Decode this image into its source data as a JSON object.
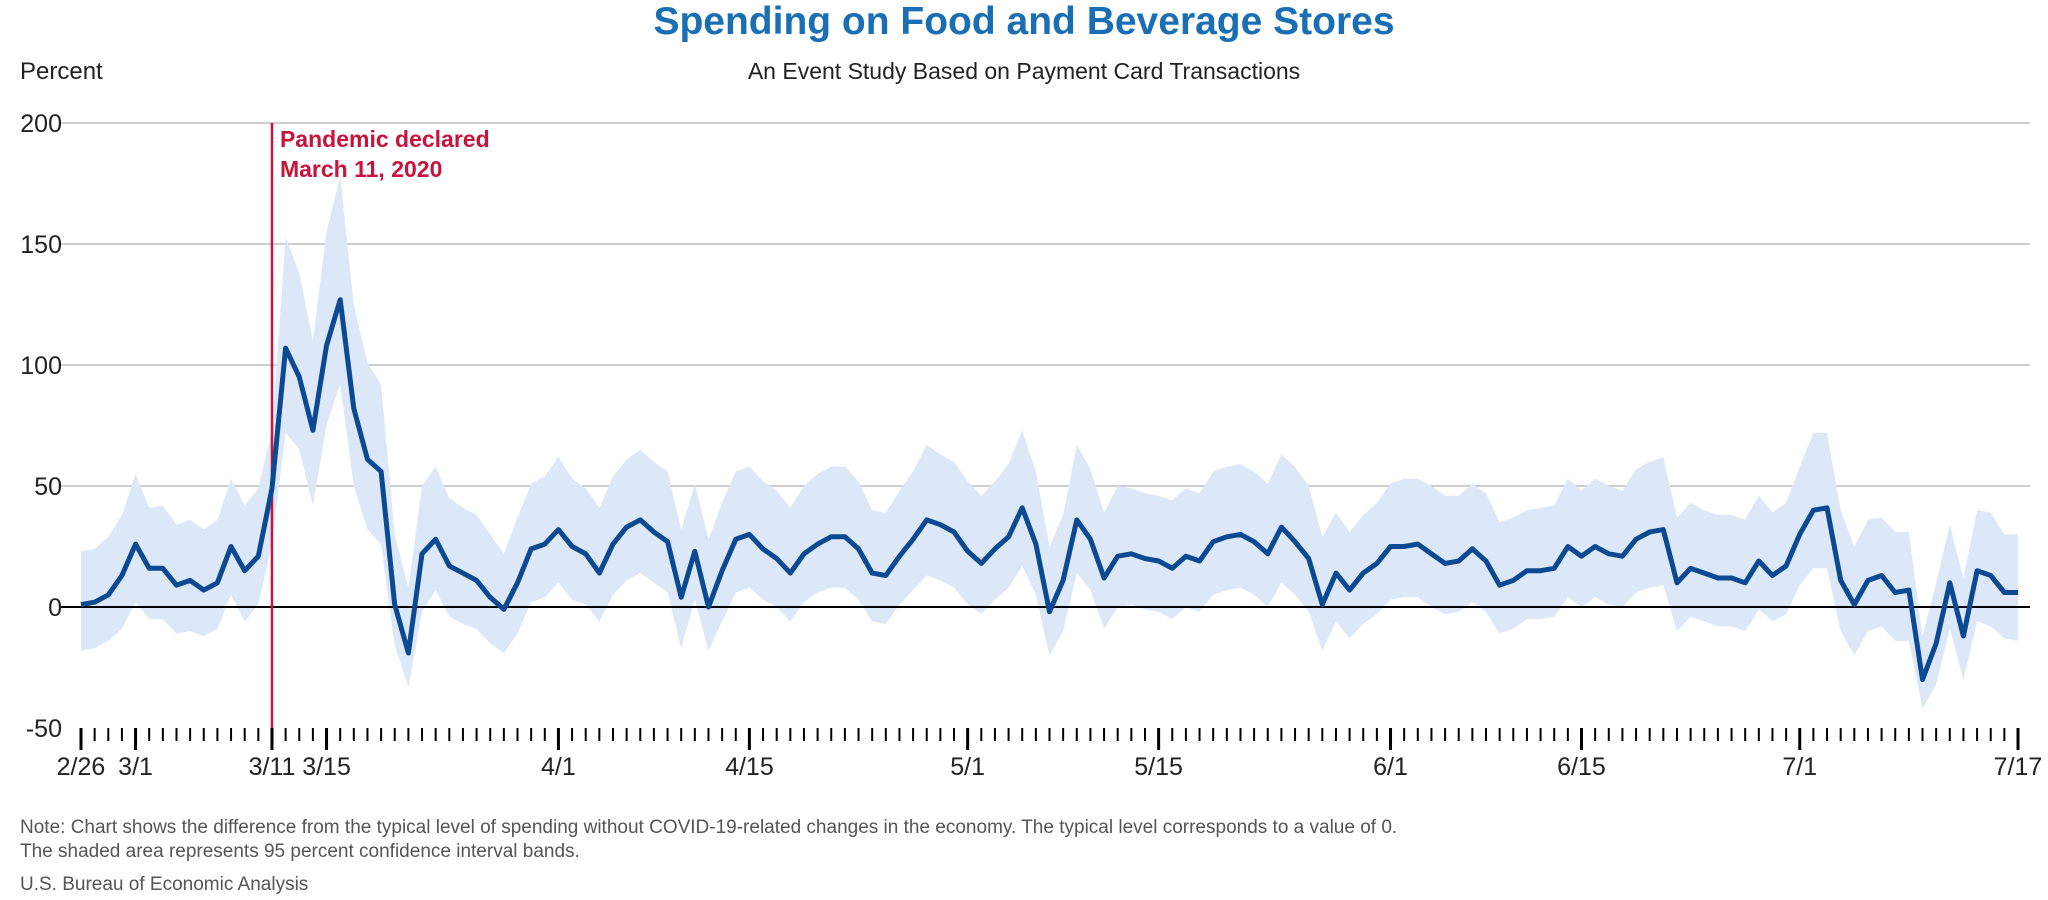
{
  "chart_data": {
    "type": "line",
    "title": "Spending on Food and Beverage Stores",
    "subtitle": "An Event Study Based on Payment Card Transactions",
    "ylabel": "Percent",
    "xlabel": "",
    "ylim": [
      -50,
      200
    ],
    "yticks": [
      -50,
      0,
      50,
      100,
      150,
      200
    ],
    "grid": true,
    "x_tick_labels": [
      {
        "day": 0,
        "label": "2/26"
      },
      {
        "day": 4,
        "label": "3/1"
      },
      {
        "day": 14,
        "label": "3/11"
      },
      {
        "day": 18,
        "label": "3/15"
      },
      {
        "day": 35,
        "label": "4/1"
      },
      {
        "day": 49,
        "label": "4/15"
      },
      {
        "day": 65,
        "label": "5/1"
      },
      {
        "day": 79,
        "label": "5/15"
      },
      {
        "day": 96,
        "label": "6/1"
      },
      {
        "day": 110,
        "label": "6/15"
      },
      {
        "day": 126,
        "label": "7/1"
      },
      {
        "day": 142,
        "label": "7/17"
      }
    ],
    "annotation": {
      "day": 14,
      "line1": "Pandemic declared",
      "line2": "March 11, 2020",
      "color": "#c8143c"
    },
    "series_color": "#0b4a92",
    "band_color": "#dce8f7",
    "values": [
      1,
      2,
      5,
      13,
      26,
      16,
      16,
      9,
      11,
      7,
      10,
      25,
      15,
      21,
      49,
      107,
      95,
      73,
      108,
      127,
      82,
      61,
      56,
      1,
      -19,
      22,
      28,
      17,
      14,
      11,
      4,
      -1,
      10,
      24,
      26,
      32,
      25,
      22,
      14,
      26,
      33,
      36,
      31,
      27,
      4,
      23,
      0,
      15,
      28,
      30,
      24,
      20,
      14,
      22,
      26,
      29,
      29,
      24,
      14,
      13,
      21,
      28,
      36,
      34,
      31,
      23,
      18,
      24,
      29,
      41,
      26,
      -2,
      11,
      36,
      28,
      12,
      21,
      22,
      20,
      19,
      16,
      21,
      19,
      27,
      29,
      30,
      27,
      22,
      33,
      27,
      20,
      1,
      14,
      7,
      14,
      18,
      25,
      25,
      26,
      22,
      18,
      19,
      24,
      19,
      9,
      11,
      15,
      15,
      16,
      25,
      21,
      25,
      22,
      21,
      28,
      31,
      32,
      10,
      16,
      14,
      12,
      12,
      10,
      19,
      13,
      17,
      30,
      40,
      41,
      11,
      1,
      11,
      13,
      6,
      7,
      -30,
      -15,
      10,
      -12,
      15,
      13,
      6,
      6
    ],
    "upper": [
      23,
      24,
      29,
      38,
      55,
      41,
      42,
      34,
      36,
      32,
      36,
      53,
      42,
      49,
      73,
      153,
      138,
      110,
      155,
      178,
      125,
      101,
      92,
      30,
      8,
      50,
      58,
      45,
      41,
      38,
      30,
      22,
      37,
      51,
      54,
      62,
      53,
      49,
      41,
      54,
      61,
      65,
      60,
      56,
      32,
      51,
      28,
      43,
      56,
      58,
      52,
      48,
      41,
      50,
      55,
      58,
      58,
      52,
      40,
      39,
      48,
      56,
      67,
      63,
      60,
      52,
      46,
      52,
      59,
      73,
      56,
      25,
      38,
      67,
      57,
      39,
      50,
      49,
      47,
      46,
      44,
      49,
      47,
      56,
      58,
      59,
      56,
      51,
      63,
      58,
      50,
      29,
      39,
      31,
      38,
      43,
      51,
      53,
      53,
      50,
      46,
      46,
      51,
      47,
      35,
      37,
      40,
      41,
      42,
      53,
      48,
      53,
      50,
      48,
      57,
      60,
      62,
      37,
      43,
      40,
      38,
      38,
      36,
      46,
      39,
      43,
      58,
      72,
      72,
      40,
      25,
      36,
      37,
      31,
      31,
      -12,
      10,
      34,
      12,
      40,
      39,
      30,
      30
    ],
    "lower": [
      -18,
      -17,
      -14,
      -9,
      2,
      -5,
      -5,
      -11,
      -10,
      -12,
      -9,
      5,
      -6,
      1,
      26,
      72,
      65,
      42,
      75,
      92,
      50,
      32,
      26,
      -16,
      -33,
      -2,
      7,
      -4,
      -7,
      -9,
      -15,
      -19,
      -11,
      2,
      4,
      10,
      3,
      1,
      -6,
      5,
      11,
      14,
      10,
      6,
      -17,
      3,
      -18,
      -6,
      6,
      8,
      3,
      0,
      -6,
      2,
      6,
      8,
      8,
      3,
      -6,
      -7,
      1,
      7,
      13,
      11,
      8,
      1,
      -3,
      3,
      8,
      17,
      5,
      -20,
      -10,
      14,
      7,
      -9,
      0,
      1,
      -1,
      -2,
      -5,
      0,
      -2,
      5,
      7,
      8,
      5,
      0,
      10,
      5,
      -2,
      -18,
      -6,
      -13,
      -7,
      -3,
      3,
      4,
      4,
      0,
      -3,
      -2,
      2,
      -2,
      -11,
      -9,
      -5,
      -5,
      -4,
      4,
      0,
      4,
      1,
      0,
      6,
      8,
      9,
      -10,
      -4,
      -6,
      -8,
      -8,
      -10,
      -1,
      -6,
      -3,
      9,
      16,
      16,
      -10,
      -20,
      -10,
      -8,
      -14,
      -14,
      -42,
      -32,
      -9,
      -30,
      -6,
      -8,
      -13,
      -14
    ]
  },
  "note_line1": "Note: Chart shows the difference from the typical level of spending without COVID-19-related changes in the economy. The typical level corresponds to a value of 0.",
  "note_line2": "The shaded area represents 95 percent confidence interval bands.",
  "source": "U.S. Bureau of Economic Analysis"
}
